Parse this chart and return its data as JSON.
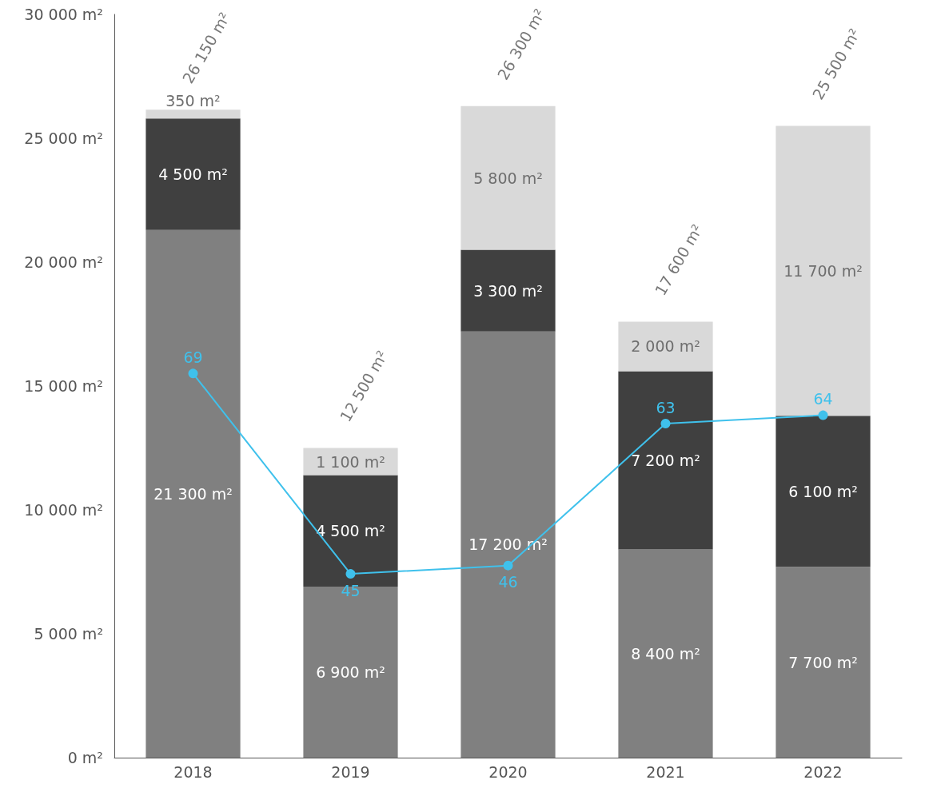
{
  "chart_data": {
    "type": "bar",
    "stacked": true,
    "categories": [
      "2018",
      "2019",
      "2020",
      "2021",
      "2022"
    ],
    "series": [
      {
        "color": "#808080",
        "values": [
          21300,
          6900,
          17200,
          8400,
          7700
        ],
        "value_labels": [
          "21 300 m²",
          "6 900 m²",
          "17 200 m²",
          "8 400 m²",
          "7 700 m²"
        ]
      },
      {
        "color": "#404040",
        "values": [
          4500,
          4500,
          3300,
          7200,
          6100
        ],
        "value_labels": [
          "4 500 m²",
          "4 500 m²",
          "3 300 m²",
          "7 200 m²",
          "6 100 m²"
        ]
      },
      {
        "color": "#d9d9d9",
        "values": [
          350,
          1100,
          5800,
          2000,
          11700
        ],
        "value_labels": [
          "350 m²",
          "1 100 m²",
          "5 800 m²",
          "2 000 m²",
          "11 700 m²"
        ]
      },
      {
        "type": "line",
        "axis": "y2",
        "color": "#3fc1ec",
        "values": [
          69,
          45,
          46,
          63,
          64
        ],
        "data_labels": true,
        "marker": "circle"
      }
    ],
    "totals": [
      "26 150 m²",
      "12 500 m²",
      "26 300 m²",
      "17 600 m²",
      "25 500 m²"
    ],
    "ylim": [
      0,
      30000
    ],
    "yticks": [
      {
        "value": 0,
        "label": "0 m²"
      },
      {
        "value": 5000,
        "label": "5 000 m²"
      },
      {
        "value": 10000,
        "label": "10 000 m²"
      },
      {
        "value": 15000,
        "label": "15 000 m²"
      },
      {
        "value": 20000,
        "label": "20 000 m²"
      },
      {
        "value": 25000,
        "label": "25 000 m²"
      },
      {
        "value": 30000,
        "label": "30 000 m²"
      }
    ],
    "y2lim": [
      23,
      112
    ],
    "tick_labels": "xy",
    "grid": false
  }
}
